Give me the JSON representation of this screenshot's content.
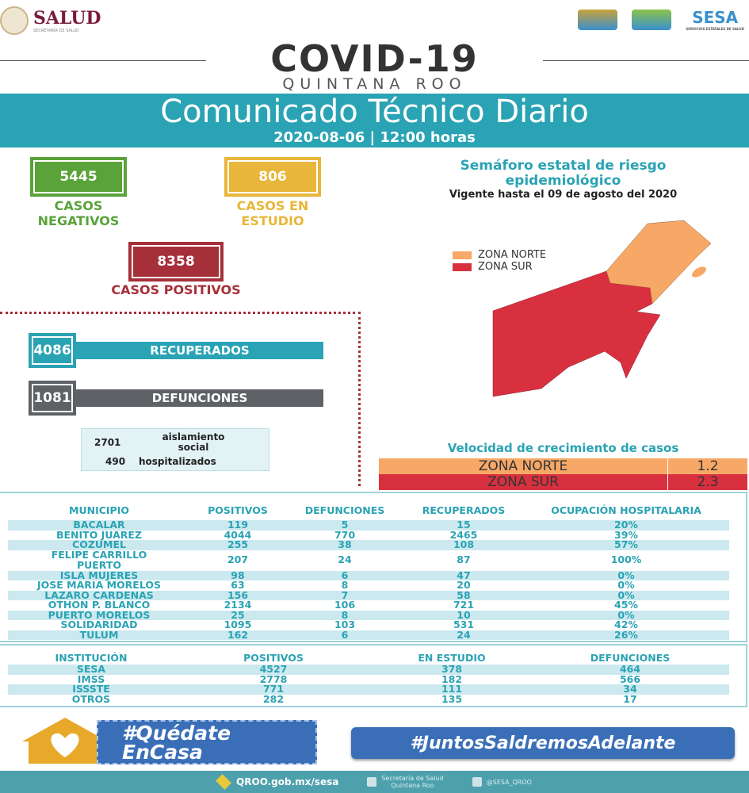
{
  "header": {
    "salud": "SALUD",
    "salud_sub": "SECRETARÍA DE SALUD",
    "sesa": "SESA",
    "sesa_sub": "SERVICIOS ESTATALES DE SALUD",
    "qroo_logo": "QUINTANA ROO"
  },
  "title": {
    "covid": "COVID-19",
    "region": "QUINTANA ROO",
    "banner": "Comunicado Técnico Diario",
    "date": "2020-08-06 | 12:00 horas"
  },
  "summary": {
    "negativos": {
      "value": "5445",
      "label1": "CASOS",
      "label2": "NEGATIVOS",
      "color": "#5aa23a"
    },
    "estudio": {
      "value": "806",
      "label1": "CASOS EN",
      "label2": "ESTUDIO",
      "color": "#e8b63a"
    },
    "positivos": {
      "value": "8358",
      "label": "CASOS POSITIVOS",
      "color": "#a6303a"
    },
    "recuperados": {
      "value": "4086",
      "label": "RECUPERADOS",
      "color": "#2aa3b4"
    },
    "defunciones": {
      "value": "1081",
      "label": "DEFUNCIONES",
      "color": "#5e6166"
    },
    "aislamiento": {
      "value": "2701",
      "label1": "aislamiento",
      "label2": "social"
    },
    "hospitalizados": {
      "value": "490",
      "label": "hospitalizados"
    }
  },
  "semaforo": {
    "title1": "Semáforo estatal de riesgo",
    "title2": "epidemiológico",
    "vigente": "Vigente hasta el 09 de agosto del 2020",
    "legend": [
      {
        "label": "ZONA NORTE",
        "color": "#f7a866"
      },
      {
        "label": "ZONA SUR",
        "color": "#d9303f"
      }
    ]
  },
  "velocidad": {
    "title": "Velocidad de crecimiento de casos",
    "rows": [
      {
        "zona": "ZONA NORTE",
        "valor": "1.2",
        "color": "#f7a866"
      },
      {
        "zona": "ZONA SUR",
        "valor": "2.3",
        "color": "#d9303f"
      }
    ]
  },
  "municipios": {
    "headers": [
      "MUNICIPIO",
      "POSITIVOS",
      "DEFUNCIONES",
      "RECUPERADOS",
      "OCUPACIÓN HOSPITALARIA"
    ],
    "rows": [
      [
        "BACALAR",
        "119",
        "5",
        "15",
        "20%"
      ],
      [
        "BENITO JUAREZ",
        "4044",
        "770",
        "2465",
        "39%"
      ],
      [
        "COZUMEL",
        "255",
        "38",
        "108",
        "57%"
      ],
      [
        "FELIPE CARRILLO PUERTO",
        "207",
        "24",
        "87",
        "100%"
      ],
      [
        "ISLA MUJERES",
        "98",
        "6",
        "47",
        "0%"
      ],
      [
        "JOSE MARIA MORELOS",
        "63",
        "8",
        "20",
        "0%"
      ],
      [
        "LAZARO CARDENAS",
        "156",
        "7",
        "58",
        "0%"
      ],
      [
        "OTHON P. BLANCO",
        "2134",
        "106",
        "721",
        "45%"
      ],
      [
        "PUERTO MORELOS",
        "25",
        "8",
        "10",
        "0%"
      ],
      [
        "SOLIDARIDAD",
        "1095",
        "103",
        "531",
        "42%"
      ],
      [
        "TULUM",
        "162",
        "6",
        "24",
        "26%"
      ]
    ]
  },
  "instituciones": {
    "headers": [
      "INSTITUCIÓN",
      "POSITIVOS",
      "EN ESTUDIO",
      "DEFUNCIONES"
    ],
    "rows": [
      [
        "SESA",
        "4527",
        "378",
        "464"
      ],
      [
        "IMSS",
        "2778",
        "182",
        "566"
      ],
      [
        "ISSSTE",
        "771",
        "111",
        "34"
      ],
      [
        "OTROS",
        "282",
        "135",
        "17"
      ]
    ]
  },
  "campaigns": {
    "quedate1": "#Quédate",
    "quedate2": "EnCasa",
    "juntos": "#JuntosSaldremosAdelante"
  },
  "footer": {
    "web": "QROO.gob.mx/sesa",
    "facebook1": "Secretaría de Salud",
    "facebook2": "Quintana Roo",
    "twitter": "@SESA_QROO"
  }
}
